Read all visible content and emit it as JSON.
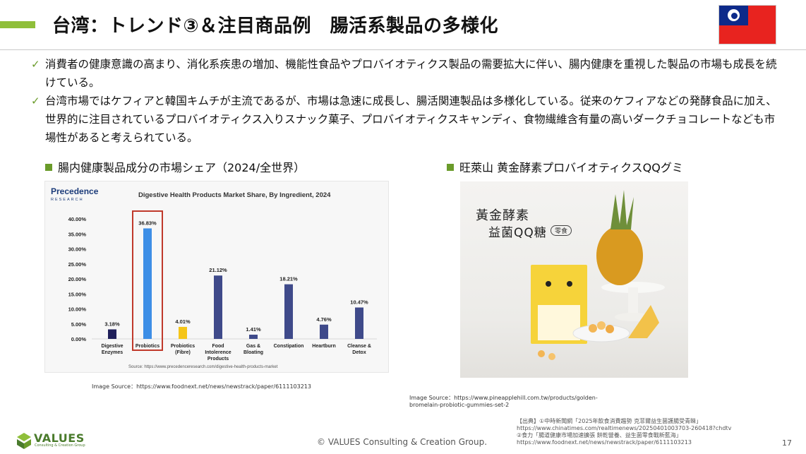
{
  "header": {
    "title": "台湾：トレンド③＆注目商品例　腸活系製品の多様化",
    "flag_icon": "taiwan-flag-icon",
    "accent_color": "#8fbf3a"
  },
  "bullets": [
    "消費者の健康意識の高まり、消化系疾患の増加、機能性食品やプロバイオティクス製品の需要拡大に伴い、腸内健康を重視した製品の市場も成長を続けている。",
    "台湾市場ではケフィアと韓国キムチが主流であるが、市場は急速に成長し、腸活関連製品は多様化している。従来のケフィアなどの発酵食品に加え、世界的に注目されているプロバイオティクス入りスナック菓子、プロバイオティクスキャンディ、食物繊維含有量の高いダークチョコレートなども市場性があると考えられている。"
  ],
  "left_section": {
    "heading": "腸内健康製品成分の市場シェア（2024/全世界）",
    "source": "Image Source：https://www.foodnext.net/news/newstrack/paper/6111103213"
  },
  "right_section": {
    "heading": "旺萊山 黄金酵素プロバイオティクスQQグミ",
    "photo_caption_line1": "黃金酵素",
    "photo_caption_line2": "益菌QQ糖",
    "photo_badge": "零食",
    "source_line1": "Image Source：https://www.pineapplehill.com.tw/products/golden-",
    "source_line2": "bromelain-probiotic-gummies-set-2"
  },
  "chart_data": {
    "type": "bar",
    "brand_line1": "Precedence",
    "brand_line2": "RESEARCH",
    "title": "Digestive Health Products Market Share, By Ingredient, 2024",
    "categories": [
      [
        "Digestive",
        "Enzymes"
      ],
      [
        "Probiotics"
      ],
      [
        "Probiotics",
        "(Fibre)"
      ],
      [
        "Food",
        "Intolerence",
        "Products"
      ],
      [
        "Gas &",
        "Bloating"
      ],
      [
        "Constipation"
      ],
      [
        "Heartburn"
      ],
      [
        "Cleanse &",
        "Detox"
      ]
    ],
    "values": [
      3.18,
      36.83,
      4.01,
      21.12,
      1.41,
      18.21,
      4.76,
      10.47
    ],
    "value_labels": [
      "3.18%",
      "36.83%",
      "4.01%",
      "21.12%",
      "1.41%",
      "18.21%",
      "4.76%",
      "10.47%"
    ],
    "colors": [
      "#1f1f5a",
      "#3d8ee6",
      "#f5c518",
      "#3f4a8a",
      "#3f4a8a",
      "#3f4a8a",
      "#3f4a8a",
      "#3f4a8a"
    ],
    "highlight_index": 1,
    "highlight_color": "#c0392b",
    "yticks": [
      "0.00%",
      "5.00%",
      "10.00%",
      "15.00%",
      "20.00%",
      "25.00%",
      "30.00%",
      "35.00%",
      "40.00%"
    ],
    "ylim": [
      0,
      40
    ],
    "grid": false,
    "source": "Source: https://www.precedenceresearch.com/digestive-health-products-market"
  },
  "references": [
    "【出典】①中時新聞網「2025年飲食消費趨勢 克菲爾益生菌護腸受青睞」",
    "https://www.chinatimes.com/realtimenews/20250401003703-260418?chdtv",
    "②食力「腸道健康市場加速擴張 餅乾營養、益生菌零食戰新藍海」",
    "https://www.foodnext.net/news/newstrack/paper/6111103213"
  ],
  "footer": {
    "logo_word": "VALUES",
    "logo_sub": "Consulting & Creation Group",
    "copyright": "© VALUES Consulting & Creation Group.",
    "page_number": "17"
  }
}
